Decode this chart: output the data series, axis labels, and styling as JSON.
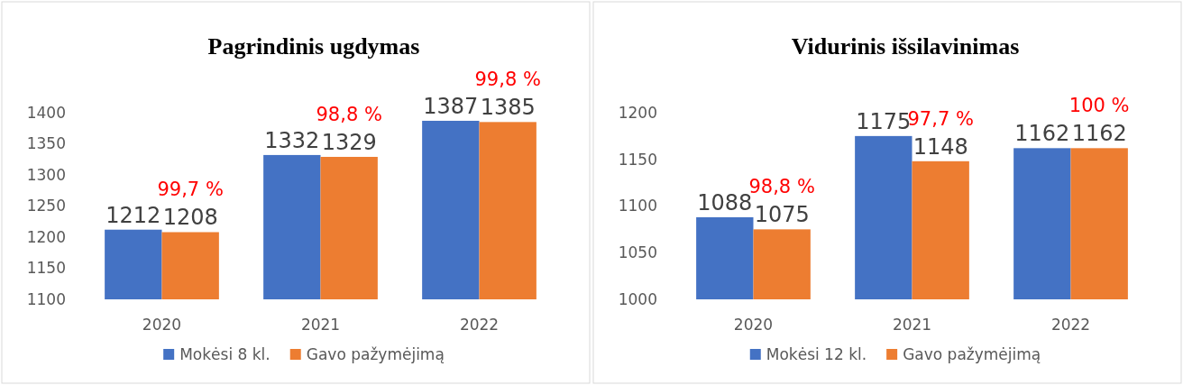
{
  "chart_data": [
    {
      "type": "bar",
      "title": "Pagrindinis ugdymas",
      "categories": [
        "2020",
        "2021",
        "2022"
      ],
      "series": [
        {
          "name": "Mokėsi 8 kl.",
          "color": "#4472c4",
          "values": [
            1212,
            1332,
            1387
          ]
        },
        {
          "name": "Gavo pažymėjimą",
          "color": "#ed7d31",
          "values": [
            1208,
            1329,
            1385
          ]
        }
      ],
      "ylim": [
        1100,
        1400
      ],
      "yticks": [
        1100,
        1150,
        1200,
        1250,
        1300,
        1350,
        1400
      ],
      "data_labels": true,
      "legend": "bottom",
      "annotations": [
        {
          "text": "99,7 %",
          "x": "2020",
          "y": 1208
        },
        {
          "text": "98,8 %",
          "x": "2021",
          "y": 1329
        },
        {
          "text": "99,8 %",
          "x": "2022",
          "y": 1385
        }
      ]
    },
    {
      "type": "bar",
      "title": "Vidurinis išsilavinimas",
      "categories": [
        "2020",
        "2021",
        "2022"
      ],
      "series": [
        {
          "name": "Mokėsi 12 kl.",
          "color": "#4472c4",
          "values": [
            1088,
            1175,
            1162
          ]
        },
        {
          "name": "Gavo pažymėjimą",
          "color": "#ed7d31",
          "values": [
            1075,
            1148,
            1162
          ]
        }
      ],
      "ylim": [
        1000,
        1200
      ],
      "yticks": [
        1000,
        1050,
        1100,
        1150,
        1200
      ],
      "data_labels": true,
      "legend": "bottom",
      "annotations": [
        {
          "text": "98,8 %",
          "x": "2020",
          "y": 1075
        },
        {
          "text": "97,7 %",
          "x": "2021",
          "y": 1148
        },
        {
          "text": "100 %",
          "x": "2022",
          "y": 1162
        }
      ]
    }
  ]
}
